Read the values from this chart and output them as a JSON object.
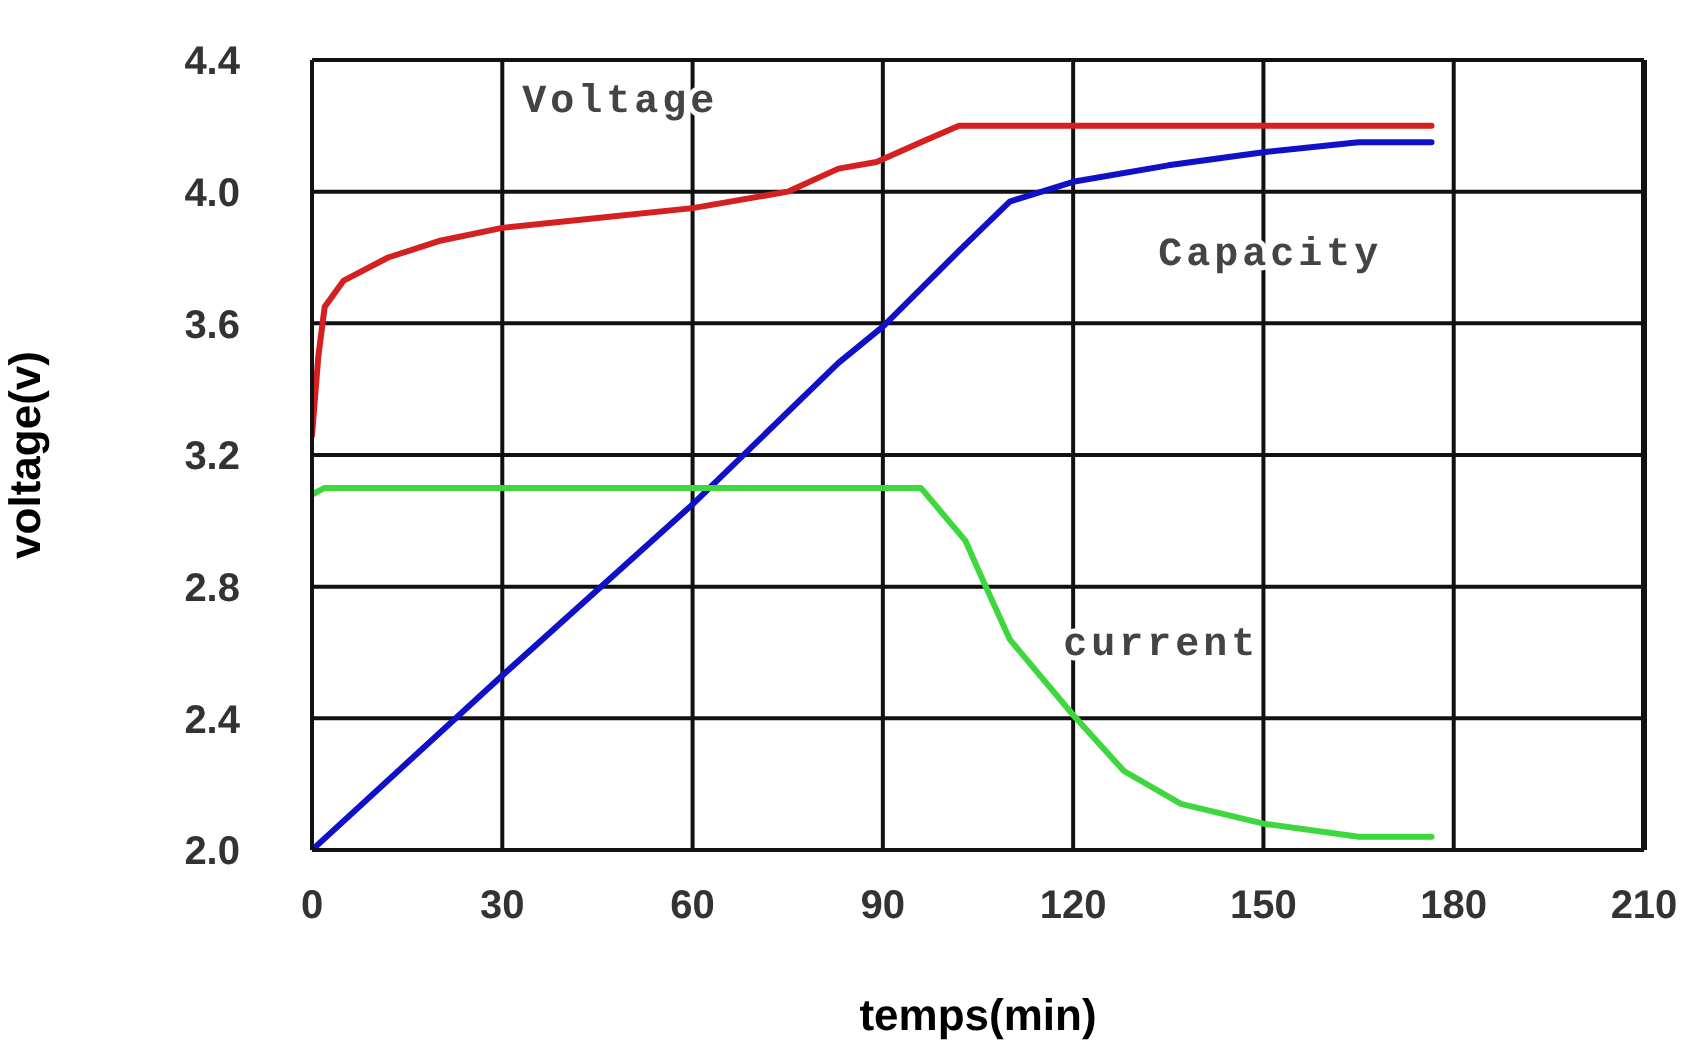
{
  "chart_data": {
    "type": "line",
    "xlabel": "temps(min)",
    "ylabel": "voltage(v)",
    "xlim": [
      0,
      210
    ],
    "xticks": [
      0,
      30,
      60,
      90,
      120,
      150,
      180,
      210
    ],
    "ylim": [
      2.0,
      4.4
    ],
    "yticks": [
      {
        "value": 2.0,
        "label": "2.0"
      },
      2.4,
      2.8,
      3.2,
      3.6,
      {
        "value": 4.0,
        "label": "4.0"
      },
      4.4
    ],
    "grid": true,
    "legend": false,
    "marker": "none",
    "line_style": "solid",
    "series": [
      {
        "name": "Voltage",
        "color": "#d42020",
        "x": [
          0,
          1,
          2,
          5,
          12,
          20,
          30,
          45,
          60,
          75,
          83,
          89,
          96,
          102,
          140,
          176.5
        ],
        "values": [
          3.26,
          3.5,
          3.65,
          3.73,
          3.8,
          3.85,
          3.89,
          3.92,
          3.95,
          4.0,
          4.07,
          4.09,
          4.15,
          4.2,
          4.2,
          4.2
        ]
      },
      {
        "name": "Capacity",
        "color": "#1010c8",
        "x": [
          0,
          30,
          60,
          83,
          90,
          102,
          110,
          120,
          135,
          150,
          165,
          176.5
        ],
        "values": [
          2.0,
          2.53,
          3.05,
          3.48,
          3.59,
          3.82,
          3.97,
          4.03,
          4.08,
          4.12,
          4.15,
          4.15
        ]
      },
      {
        "name": "current",
        "color": "#3ed83e",
        "x": [
          0,
          2,
          30,
          60,
          96,
          103,
          106,
          110,
          120,
          128,
          137,
          150,
          165,
          176.5
        ],
        "values": [
          3.08,
          3.1,
          3.1,
          3.1,
          3.1,
          2.94,
          2.81,
          2.64,
          2.41,
          2.24,
          2.14,
          2.08,
          2.04,
          2.04
        ]
      }
    ]
  }
}
